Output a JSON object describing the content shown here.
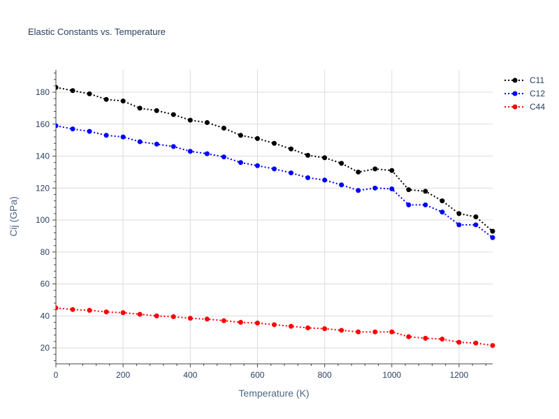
{
  "chart_data": {
    "type": "line",
    "title": "Elastic Constants vs. Temperature",
    "xlabel": "Temperature (K)",
    "ylabel": "Cij (GPa)",
    "xlim": [
      0,
      1300
    ],
    "ylim": [
      10,
      194
    ],
    "xticks": [
      0,
      200,
      400,
      600,
      800,
      1000,
      1200
    ],
    "yticks": [
      20,
      40,
      60,
      80,
      100,
      120,
      140,
      160,
      180
    ],
    "grid": true,
    "legend_position": "top-right",
    "line_style": "dotted",
    "x": [
      0,
      50,
      100,
      150,
      200,
      250,
      300,
      350,
      400,
      450,
      500,
      550,
      600,
      650,
      700,
      750,
      800,
      850,
      900,
      950,
      1000,
      1050,
      1100,
      1150,
      1200,
      1250,
      1300
    ],
    "series": [
      {
        "name": "C11",
        "color": "#000000",
        "values": [
          183,
          181,
          179,
          175.5,
          174.5,
          170,
          168.5,
          166,
          162.5,
          161,
          157.5,
          153,
          151,
          148,
          144.5,
          140.5,
          139,
          135.5,
          130,
          132,
          131,
          119,
          118,
          112,
          104,
          102,
          93
        ]
      },
      {
        "name": "C12",
        "color": "#0000ff",
        "values": [
          159,
          157,
          155.5,
          153,
          152,
          149,
          147.5,
          146,
          143,
          141.5,
          139.5,
          136,
          134,
          132,
          129.5,
          126.5,
          125,
          122,
          118.5,
          120,
          119.5,
          109.5,
          109.5,
          105,
          97,
          97,
          89
        ]
      },
      {
        "name": "C44",
        "color": "#ff0000",
        "values": [
          45,
          44,
          43.5,
          42.5,
          42,
          41,
          40,
          39.5,
          38.5,
          38,
          37,
          36,
          35.5,
          34.5,
          33.5,
          32.5,
          32,
          31,
          30,
          30,
          30,
          27,
          26,
          25.5,
          23.5,
          23,
          21.5
        ]
      }
    ]
  }
}
